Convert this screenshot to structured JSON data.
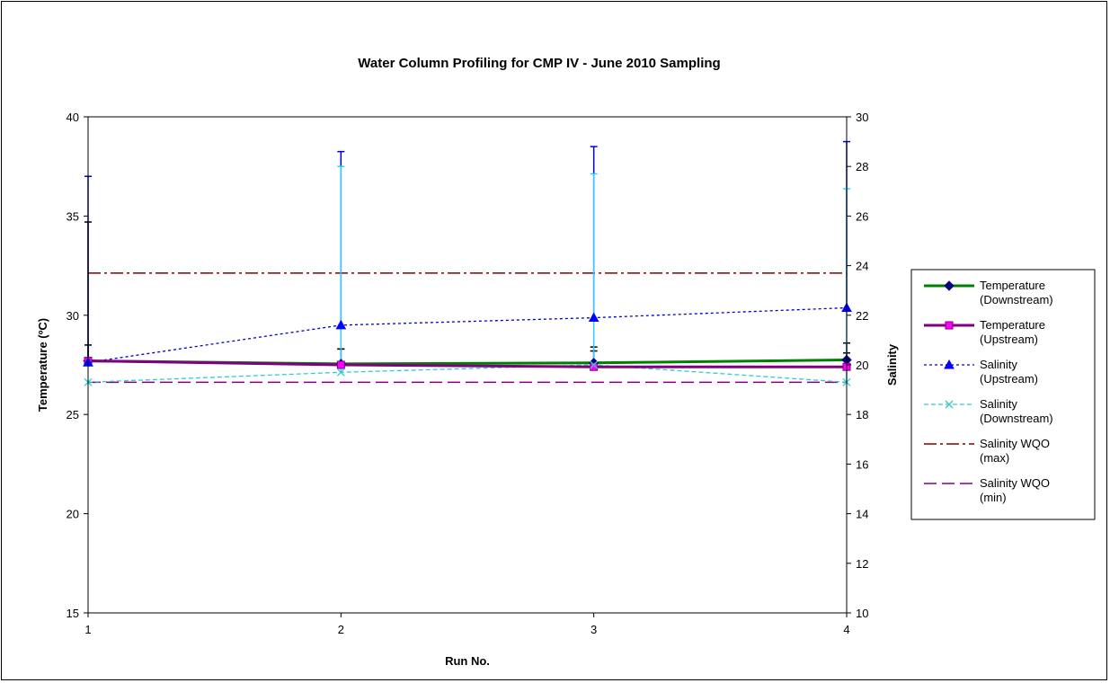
{
  "chart_data": {
    "type": "line",
    "title": "Water Column Profiling for CMP IV - June 2010 Sampling",
    "xlabel": "Run No.",
    "ylabel": "Temperature (ºC)",
    "y2label": "Salinity",
    "x": [
      1,
      2,
      3,
      4
    ],
    "x_ticks": [
      "1",
      "2",
      "3",
      "4"
    ],
    "xlim": [
      1,
      4
    ],
    "ylim": [
      15,
      40
    ],
    "y2lim": [
      10,
      30
    ],
    "y_ticks": [
      "15",
      "20",
      "25",
      "30",
      "35",
      "40"
    ],
    "y2_ticks": [
      "10",
      "12",
      "14",
      "16",
      "18",
      "20",
      "22",
      "24",
      "26",
      "28",
      "30"
    ],
    "grid": false,
    "legend_position": "right",
    "series": [
      {
        "name": "Temperature (Downstream)",
        "legend_lines": [
          "Temperature",
          "(Downstream)"
        ],
        "axis": "left",
        "values": [
          27.7,
          27.55,
          27.6,
          27.75
        ],
        "error_high": [
          28.5,
          28.3,
          28.4,
          28.6
        ],
        "error_low": [
          27.7,
          27.55,
          27.6,
          27.75
        ],
        "color": "#008000",
        "marker_color": "#000080",
        "style": "solid",
        "marker": "diamond"
      },
      {
        "name": "Temperature (Upstream)",
        "legend_lines": [
          "Temperature",
          "(Upstream)"
        ],
        "axis": "left",
        "values": [
          27.7,
          27.5,
          27.4,
          27.4
        ],
        "error_high": [
          34.7,
          28.3,
          28.2,
          28.1
        ],
        "error_low": [
          27.7,
          27.5,
          27.4,
          27.4
        ],
        "color": "#800080",
        "marker_color": "#FF00FF",
        "style": "solid",
        "marker": "square"
      },
      {
        "name": "Salinity (Upstream)",
        "legend_lines": [
          "Salinity",
          "(Upstream)"
        ],
        "axis": "right",
        "values": [
          20.1,
          21.6,
          21.9,
          22.3
        ],
        "error_high": [
          27.6,
          28.6,
          28.8,
          29.0
        ],
        "error_low": [
          20.1,
          21.6,
          21.9,
          22.3
        ],
        "color": "#0000CC",
        "marker_color": "#0000FF",
        "style": "dotted",
        "marker": "triangle"
      },
      {
        "name": "Salinity (Downstream)",
        "legend_lines": [
          "Salinity",
          "(Downstream)"
        ],
        "axis": "right",
        "values": [
          19.3,
          19.7,
          20.0,
          19.3
        ],
        "error_high": [
          19.3,
          28.0,
          27.7,
          27.1
        ],
        "error_low": [
          19.3,
          19.7,
          20.0,
          19.3
        ],
        "color": "#33CCCC",
        "marker_color": "#33CCCC",
        "style": "dashed-thin",
        "marker": "x"
      },
      {
        "name": "Salinity WQO (max)",
        "legend_lines": [
          "Salinity WQO",
          "(max)"
        ],
        "axis": "right",
        "values": [
          23.7,
          23.7,
          23.7,
          23.7
        ],
        "color": "#800000",
        "style": "dashdot",
        "marker": "none"
      },
      {
        "name": "Salinity WQO (min)",
        "legend_lines": [
          "Salinity WQO",
          "(min)"
        ],
        "axis": "right",
        "values": [
          19.3,
          19.3,
          19.3,
          19.3
        ],
        "color": "#800080",
        "style": "dashed",
        "marker": "none"
      }
    ],
    "error_bar_colors": {
      "Temperature (Downstream)": "#000000",
      "Temperature (Upstream)": "#000000",
      "Salinity (Upstream)": "#0000CC",
      "Salinity (Downstream)": "#33CCFF"
    }
  }
}
